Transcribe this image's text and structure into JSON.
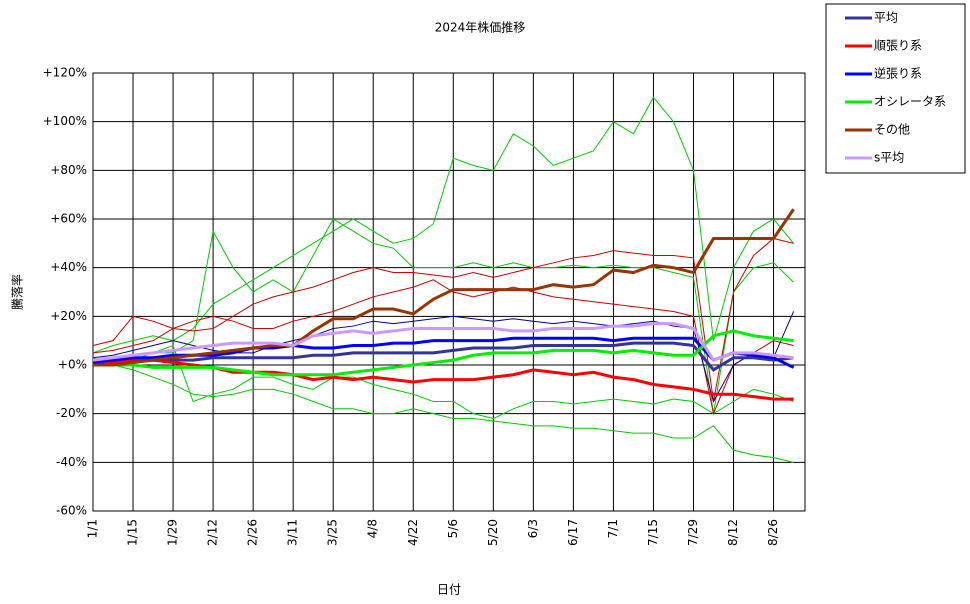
{
  "chart_data": {
    "type": "line",
    "title": "2024年株価推移",
    "x_label": "日付",
    "y_label": "騰落率",
    "x": [
      0,
      7,
      14,
      21,
      28,
      35,
      42,
      49,
      56,
      63,
      70,
      77,
      84,
      91,
      98,
      105,
      112,
      119,
      126,
      133,
      140,
      147,
      154,
      161,
      168,
      175,
      182,
      189,
      196,
      203,
      210,
      217,
      224,
      231,
      238,
      245
    ],
    "xlim": [
      0,
      249
    ],
    "xticks": [
      {
        "value": 0,
        "label": "1/1"
      },
      {
        "value": 14,
        "label": "1/15"
      },
      {
        "value": 28,
        "label": "1/29"
      },
      {
        "value": 42,
        "label": "2/12"
      },
      {
        "value": 56,
        "label": "2/26"
      },
      {
        "value": 70,
        "label": "3/11"
      },
      {
        "value": 84,
        "label": "3/25"
      },
      {
        "value": 98,
        "label": "4/8"
      },
      {
        "value": 112,
        "label": "4/22"
      },
      {
        "value": 126,
        "label": "5/6"
      },
      {
        "value": 140,
        "label": "5/20"
      },
      {
        "value": 154,
        "label": "6/3"
      },
      {
        "value": 168,
        "label": "6/17"
      },
      {
        "value": 182,
        "label": "7/1"
      },
      {
        "value": 196,
        "label": "7/15"
      },
      {
        "value": 210,
        "label": "7/29"
      },
      {
        "value": 224,
        "label": "8/12"
      },
      {
        "value": 238,
        "label": "8/26"
      }
    ],
    "ylim": [
      -60,
      120
    ],
    "yticks": [
      {
        "value": -60,
        "label": "-60%"
      },
      {
        "value": -40,
        "label": "-40%"
      },
      {
        "value": -20,
        "label": "-20%"
      },
      {
        "value": 0,
        "label": "+0%"
      },
      {
        "value": 20,
        "label": "+20%"
      },
      {
        "value": 40,
        "label": "+40%"
      },
      {
        "value": 60,
        "label": "+60%"
      },
      {
        "value": 80,
        "label": "+80%"
      },
      {
        "value": 100,
        "label": "+100%"
      },
      {
        "value": 120,
        "label": "+120%"
      }
    ],
    "grid": true,
    "legend": "outside-right-top",
    "series": [
      {
        "color": "#00cc00",
        "values": [
          5,
          8,
          10,
          12,
          10,
          15,
          25,
          30,
          35,
          40,
          45,
          50,
          55,
          60,
          55,
          50,
          52,
          58,
          85,
          82,
          80,
          95,
          90,
          82,
          85,
          88,
          100,
          95,
          110,
          100,
          80,
          10,
          40,
          55,
          60,
          50
        ]
      },
      {
        "color": "#00cc00",
        "values": [
          3,
          0,
          -2,
          -5,
          -8,
          -12,
          -13,
          -12,
          -10,
          -10,
          -12,
          -15,
          -18,
          -18,
          -20,
          -20,
          -18,
          -20,
          -22,
          -22,
          -23,
          -24,
          -25,
          -25,
          -26,
          -26,
          -27,
          -28,
          -28,
          -30,
          -30,
          -25,
          -35,
          -37,
          -38,
          -40
        ]
      },
      {
        "color": "#00cc00",
        "values": [
          2,
          3,
          4,
          5,
          5,
          10,
          55,
          40,
          30,
          35,
          30,
          45,
          60,
          55,
          50,
          48,
          40,
          40,
          40,
          42,
          40,
          42,
          40,
          40,
          41,
          40,
          41,
          40,
          40,
          38,
          36,
          -20,
          30,
          40,
          42,
          34
        ]
      },
      {
        "color": "#00cc00",
        "values": [
          1,
          0,
          2,
          5,
          8,
          -15,
          -12,
          -10,
          -5,
          -5,
          -8,
          -10,
          -5,
          -5,
          -8,
          -10,
          -12,
          -15,
          -15,
          -20,
          -22,
          -18,
          -15,
          -15,
          -16,
          -15,
          -14,
          -15,
          -16,
          -14,
          -15,
          -20,
          -15,
          -10,
          -12,
          -15
        ]
      },
      {
        "color": "#cc0000",
        "values": [
          8,
          10,
          20,
          18,
          15,
          14,
          15,
          20,
          25,
          28,
          30,
          32,
          35,
          38,
          40,
          38,
          38,
          37,
          36,
          38,
          36,
          38,
          40,
          42,
          44,
          45,
          47,
          46,
          45,
          45,
          44,
          -15,
          30,
          45,
          52,
          50
        ]
      },
      {
        "color": "#cc0000",
        "values": [
          5,
          6,
          8,
          10,
          15,
          18,
          20,
          18,
          15,
          15,
          18,
          20,
          22,
          25,
          28,
          30,
          32,
          35,
          30,
          28,
          30,
          32,
          30,
          28,
          27,
          26,
          25,
          24,
          23,
          22,
          20,
          -20,
          0,
          5,
          10,
          8
        ]
      },
      {
        "color": "#000099",
        "values": [
          3,
          4,
          6,
          8,
          10,
          8,
          6,
          5,
          5,
          8,
          10,
          12,
          15,
          16,
          18,
          17,
          18,
          19,
          20,
          19,
          18,
          19,
          18,
          17,
          18,
          17,
          16,
          17,
          18,
          16,
          15,
          -15,
          0,
          5,
          3,
          22
        ]
      },
      {
        "name": "平均",
        "color": "#333399",
        "values": [
          1,
          2,
          2,
          2,
          2,
          2,
          3,
          3,
          3,
          3,
          3,
          4,
          4,
          5,
          5,
          5,
          5,
          5,
          6,
          7,
          7,
          7,
          8,
          8,
          8,
          8,
          8,
          9,
          9,
          9,
          8,
          -2,
          3,
          3,
          2,
          3
        ]
      },
      {
        "name": "順張り系",
        "color": "#ff0000",
        "values": [
          0,
          1,
          2,
          2,
          1,
          0,
          -1,
          -3,
          -3,
          -3,
          -4,
          -6,
          -5,
          -6,
          -5,
          -6,
          -7,
          -6,
          -6,
          -6,
          -5,
          -4,
          -2,
          -3,
          -4,
          -3,
          -5,
          -6,
          -8,
          -9,
          -10,
          -12,
          -12,
          -13,
          -14,
          -14
        ]
      },
      {
        "name": "逆張り系",
        "color": "#0000ff",
        "values": [
          1,
          2,
          3,
          3,
          4,
          4,
          4,
          5,
          7,
          7,
          8,
          7,
          7,
          8,
          8,
          9,
          9,
          10,
          10,
          10,
          10,
          11,
          11,
          11,
          11,
          11,
          10,
          11,
          11,
          11,
          11,
          2,
          5,
          4,
          3,
          -1
        ]
      },
      {
        "name": "オシレータ系",
        "color": "#00ee00",
        "values": [
          0,
          0,
          0,
          -1,
          -1,
          -1,
          -1,
          -2,
          -3,
          -4,
          -4,
          -4,
          -4,
          -3,
          -2,
          -1,
          0,
          1,
          2,
          4,
          5,
          5,
          5,
          6,
          6,
          6,
          5,
          6,
          5,
          4,
          4,
          12,
          14,
          12,
          11,
          10
        ]
      },
      {
        "name": "その他",
        "color": "#993300",
        "values": [
          0,
          0,
          1,
          2,
          3,
          4,
          5,
          6,
          7,
          8,
          8,
          14,
          19,
          19,
          23,
          23,
          21,
          27,
          31,
          31,
          31,
          31,
          31,
          33,
          32,
          33,
          39,
          38,
          41,
          40,
          38,
          52,
          52,
          52,
          52,
          64
        ]
      },
      {
        "name": "s平均",
        "color": "#cc99ff",
        "values": [
          2,
          3,
          4,
          5,
          6,
          7,
          8,
          9,
          9,
          9,
          8,
          12,
          13,
          14,
          13,
          14,
          15,
          15,
          15,
          15,
          15,
          14,
          14,
          15,
          15,
          15,
          16,
          16,
          17,
          17,
          15,
          2,
          5,
          5,
          4,
          3
        ]
      }
    ]
  }
}
